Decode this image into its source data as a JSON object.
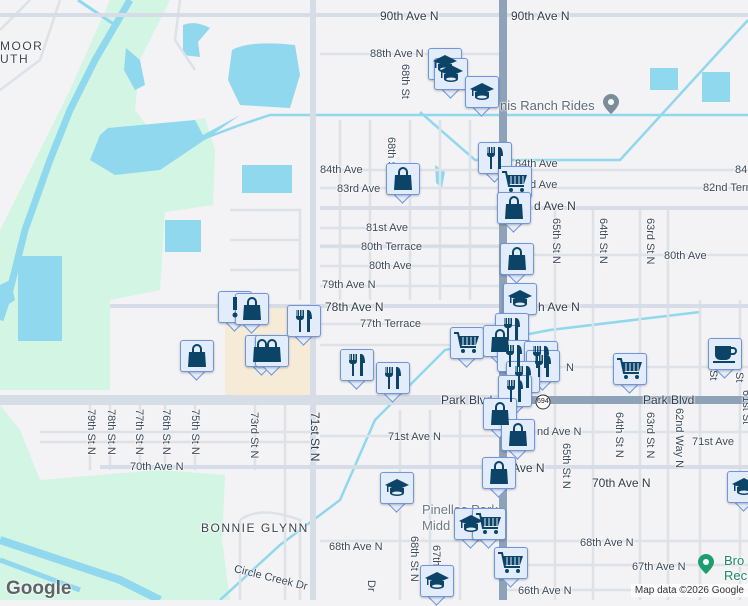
{
  "map": {
    "colors": {
      "land": "#f3f2f4",
      "water": "#8fd8ee",
      "park": "#d3f5e3",
      "road": "#d6dde6",
      "highway": "#8fa3b8",
      "commercial": "#f6ebd6",
      "marker_fill": "#e3ecfb",
      "marker_border": "#6f96dc",
      "marker_icon": "#0b4466"
    },
    "neighborhoods": [
      "MOOR",
      "UTH",
      "BONNIE GLYNN"
    ],
    "streets": {
      "ave90_w": "90th Ave N",
      "ave90_e": "90th Ave N",
      "ave88": "88th Ave N",
      "st68_n": "68th St",
      "st68_m": "68th St",
      "ave84": "84th Ave",
      "ave84_e": "84th Ave",
      "ave84_r": "84",
      "ave83": "83rd Ave",
      "ave83_e": "d Ave",
      "ave82t": "82nd Terra",
      "ave82": "d Ave N",
      "ave81": "81st Ave",
      "ave80t": "80th Terrace",
      "ave80": "80th Ave",
      "ave80_e": "80th Ave",
      "ave79": "79th Ave N",
      "ave78": "78th Ave N",
      "ave78_e": "h Ave N",
      "ave77t": "77th Terrace",
      "ave_n": "N",
      "st65": "65th St N",
      "st64": "64th St N",
      "st63": "63rd St N",
      "st64_s": "64th St N",
      "st63_s": "63rd St N",
      "st62w": "62nd Way N",
      "st61": "61st St",
      "st61_n": "St",
      "st61_n2": "St",
      "park_w": "Park Blvd",
      "park_e": "Park Blvd",
      "ave72": "nd Ave N",
      "st65_s": "65th St N",
      "st79": "79th St N",
      "st78": "78th St N",
      "st77": "77th St N",
      "st76": "76th St N",
      "st75": "75th St N",
      "st73": "73rd St N",
      "st71": "71st St N",
      "ave71": "71st Ave N",
      "ave71_e": "71st Ave",
      "ave70_w": "70th Ave N",
      "ave70_m": "70th Ave N",
      "ave70_e": "70th Ave N",
      "ave68_w": "68th Ave N",
      "ave68": "68th Ave N",
      "st68_s": "68th St N",
      "st67": "67th",
      "ave67": "67th Ave N",
      "ave66": "66th Ave N",
      "circle_creek": "Circle Creek Dr",
      "dr": "Dr",
      "route": "694"
    },
    "pois": {
      "ranch": "nis Ranch Rides",
      "middle_1": "Pinellas Park",
      "middle_2": "Midd",
      "rec_1": "Bro",
      "rec_2": "Rec"
    },
    "markers": [
      "school",
      "school",
      "school",
      "restaurant",
      "shopping-cart",
      "shopping-bag",
      "shopping-bag",
      "shopping-bag",
      "school",
      "restaurant",
      "shopping-cart",
      "shopping-bag",
      "restaurant",
      "restaurant",
      "restaurant",
      "restaurant",
      "restaurant",
      "shopping-cart",
      "coffee",
      "restaurant",
      "restaurant",
      "restaurant",
      "alert",
      "shopping-bag",
      "shopping-bag",
      "shopping-bag",
      "shopping-bag",
      "shopping-bag",
      "shopping-bag",
      "shopping-bag",
      "school",
      "school",
      "shopping-cart",
      "shopping-cart",
      "school",
      "school"
    ],
    "logo": "Google",
    "attribution": "Map data ©2026 Google"
  }
}
